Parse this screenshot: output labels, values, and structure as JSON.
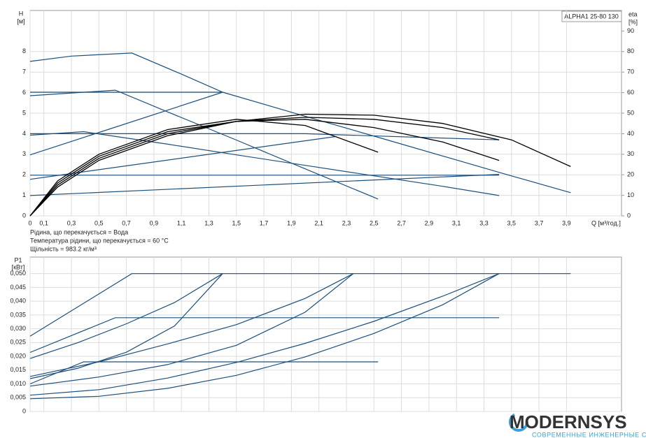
{
  "chart_data": [
    {
      "type": "line",
      "title": "ALPHA1 25-80 130",
      "y_label": "H",
      "y_unit": "[м]",
      "y2_label": "eta",
      "y2_unit": "[%]",
      "x_label": "Q [м³/год.]",
      "annotations": [
        "Рідина, що перекачується = Вода",
        "Температура рідини, що перекачується = 60 °C",
        "Щільність = 983.2 кг/м³"
      ],
      "xlim": [
        0,
        4.3
      ],
      "ylim": [
        0,
        10
      ],
      "y2lim": [
        0,
        100
      ],
      "grid": true,
      "xticks": [
        0,
        {
          "value": 0.1,
          "label": "0,1"
        },
        {
          "value": 0.3,
          "label": "0,3"
        },
        {
          "value": 0.5,
          "label": "0,5"
        },
        {
          "value": 0.7,
          "label": "0,7"
        },
        {
          "value": 0.9,
          "label": "0,9"
        },
        {
          "value": 1.1,
          "label": "1,1"
        },
        {
          "value": 1.3,
          "label": "1,3"
        },
        {
          "value": 1.5,
          "label": "1,5"
        },
        {
          "value": 1.7,
          "label": "1,7"
        },
        {
          "value": 1.9,
          "label": "1,9"
        },
        {
          "value": 2.1,
          "label": "2,1"
        },
        {
          "value": 2.3,
          "label": "2,3"
        },
        {
          "value": 2.5,
          "label": "2,5"
        },
        {
          "value": 2.7,
          "label": "2,7"
        },
        {
          "value": 2.9,
          "label": "2,9"
        },
        {
          "value": 3.1,
          "label": "3,1"
        },
        {
          "value": 3.3,
          "label": "3,3"
        },
        {
          "value": 3.5,
          "label": "3,5"
        },
        {
          "value": 3.7,
          "label": "3,7"
        },
        {
          "value": 3.9,
          "label": "3,9"
        }
      ],
      "yticks": [
        0,
        1,
        2,
        3,
        4,
        5,
        6,
        7,
        8
      ],
      "y2ticks": [
        0,
        10,
        20,
        30,
        40,
        50,
        60,
        70,
        80,
        90
      ],
      "series": [
        {
          "color": "#1c4f7c",
          "x": [
            0,
            0.3,
            0.74,
            1.1,
            1.4,
            2.0,
            2.6,
            3.42,
            3.93
          ],
          "values": [
            7.52,
            7.78,
            7.93,
            6.9,
            6.02,
            4.85,
            3.69,
            2.1,
            1.13
          ]
        },
        {
          "color": "#1c4f7c",
          "x": [
            0,
            0.62,
            1.0,
            1.5,
            2.0,
            2.53
          ],
          "values": [
            5.85,
            6.12,
            5.06,
            3.69,
            2.29,
            0.82
          ]
        },
        {
          "color": "#1c4f7c",
          "x": [
            0,
            1.4
          ],
          "values": [
            6.02,
            6.02
          ]
        },
        {
          "color": "#1c4f7c",
          "x": [
            0,
            1.4
          ],
          "values": [
            2.97,
            6.02
          ]
        },
        {
          "color": "#1c4f7c",
          "x": [
            0,
            0.39,
            1.0,
            1.5,
            2.0,
            2.5,
            3.0,
            3.41
          ],
          "values": [
            3.93,
            4.1,
            3.49,
            2.97,
            2.46,
            1.95,
            1.44,
            0.99
          ]
        },
        {
          "color": "#1c4f7c",
          "x": [
            0,
            2.0,
            3.41
          ],
          "values": [
            4.0,
            4.0,
            3.7
          ]
        },
        {
          "color": "#1c4f7c",
          "x": [
            0,
            2.22
          ],
          "values": [
            1.78,
            3.86
          ]
        },
        {
          "color": "#1c4f7c",
          "x": [
            0,
            3.41
          ],
          "values": [
            1.98,
            1.98
          ]
        },
        {
          "color": "#1c4f7c",
          "x": [
            0,
            3.41
          ],
          "values": [
            0.99,
            2.02
          ]
        },
        {
          "color": "#000000",
          "axis": "y2",
          "x": [
            0,
            0.2,
            0.5,
            1.0,
            1.5,
            2.0,
            2.53
          ],
          "values": [
            0,
            17,
            30,
            42,
            47,
            44,
            31
          ]
        },
        {
          "color": "#000000",
          "axis": "y2",
          "x": [
            0,
            0.2,
            0.5,
            1.0,
            1.5,
            2.0,
            2.5,
            3.0,
            3.41
          ],
          "values": [
            0,
            16,
            29,
            41,
            46,
            47,
            43,
            36,
            27
          ]
        },
        {
          "color": "#000000",
          "axis": "y2",
          "x": [
            0,
            0.2,
            0.5,
            1.0,
            1.5,
            2.0,
            2.5,
            3.0,
            3.41
          ],
          "values": [
            0,
            15,
            28,
            40,
            46,
            48,
            47,
            43,
            37
          ]
        },
        {
          "color": "#000000",
          "axis": "y2",
          "x": [
            0,
            0.2,
            0.5,
            1.0,
            1.5,
            2.0,
            2.5,
            3.0,
            3.5,
            3.93
          ],
          "values": [
            0,
            14,
            27,
            39,
            46,
            49.5,
            49,
            45,
            37,
            24
          ]
        }
      ]
    },
    {
      "type": "line",
      "y_label": "P1",
      "y_unit": "[кВт]",
      "xlim": [
        0,
        4.3
      ],
      "ylim": [
        0,
        0.056
      ],
      "grid": true,
      "xticks": [
        0,
        0.1,
        0.3,
        0.5,
        0.7,
        0.9,
        1.1,
        1.3,
        1.5,
        1.7,
        1.9,
        2.1,
        2.3,
        2.5,
        2.7,
        2.9,
        3.1,
        3.3,
        3.5,
        3.7,
        3.9
      ],
      "yticks": [
        0,
        {
          "value": 0.005,
          "label": "0,005"
        },
        {
          "value": 0.01,
          "label": "0,010"
        },
        {
          "value": 0.015,
          "label": "0,015"
        },
        {
          "value": 0.02,
          "label": "0,020"
        },
        {
          "value": 0.025,
          "label": "0,025"
        },
        {
          "value": 0.03,
          "label": "0,030"
        },
        {
          "value": 0.035,
          "label": "0,035"
        },
        {
          "value": 0.04,
          "label": "0,040"
        },
        {
          "value": 0.045,
          "label": "0,045"
        },
        {
          "value": 0.05,
          "label": "0,050"
        }
      ],
      "series": [
        {
          "color": "#1c4f7c",
          "x": [
            0,
            0.74,
            3.93
          ],
          "values": [
            0.0273,
            0.05,
            0.05
          ]
        },
        {
          "color": "#1c4f7c",
          "x": [
            0,
            0.62,
            3.41
          ],
          "values": [
            0.0214,
            0.034,
            0.034
          ]
        },
        {
          "color": "#1c4f7c",
          "x": [
            0,
            0.39,
            2.53
          ],
          "values": [
            0.01,
            0.018,
            0.018
          ]
        },
        {
          "color": "#1c4f7c",
          "x": [
            0,
            0.35,
            0.7,
            1.05,
            1.4
          ],
          "values": [
            0.0192,
            0.025,
            0.0318,
            0.0395,
            0.05
          ]
        },
        {
          "color": "#1c4f7c",
          "x": [
            0,
            0.35,
            0.7,
            1.05,
            1.4
          ],
          "values": [
            0.0119,
            0.0157,
            0.0215,
            0.031,
            0.05
          ]
        },
        {
          "color": "#1c4f7c",
          "x": [
            0,
            0.5,
            1.0,
            1.5,
            2.0,
            2.35
          ],
          "values": [
            0.0127,
            0.018,
            0.0245,
            0.0315,
            0.041,
            0.05
          ]
        },
        {
          "color": "#1c4f7c",
          "x": [
            0,
            0.5,
            1.0,
            1.5,
            2.0,
            2.35
          ],
          "values": [
            0.0092,
            0.0125,
            0.017,
            0.024,
            0.036,
            0.05
          ]
        },
        {
          "color": "#1c4f7c",
          "x": [
            0,
            0.5,
            1.0,
            1.5,
            2.0,
            2.5,
            3.0,
            3.41
          ],
          "values": [
            0.0059,
            0.0079,
            0.0121,
            0.0178,
            0.0247,
            0.0327,
            0.0418,
            0.05
          ]
        },
        {
          "color": "#1c4f7c",
          "x": [
            0,
            0.5,
            1.0,
            1.5,
            2.0,
            2.5,
            3.0,
            3.41
          ],
          "values": [
            0.0046,
            0.0055,
            0.0084,
            0.0131,
            0.0198,
            0.0283,
            0.0387,
            0.05
          ]
        }
      ]
    }
  ],
  "logo": {
    "name": "MODERNSYS",
    "tagline": "СОВРЕМЕННЫЕ ИНЖЕНЕРНЫЕ СИСТЕМЫ"
  }
}
